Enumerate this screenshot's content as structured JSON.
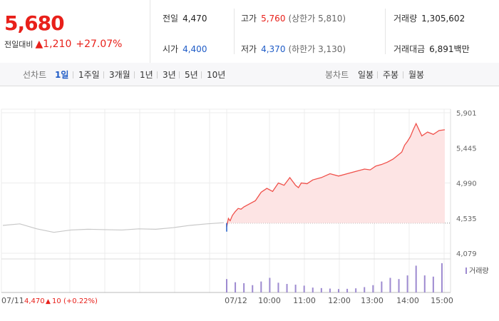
{
  "header": {
    "price": "5,680",
    "change_label": "전일대비",
    "change_arrow": "▲",
    "change_value": "1,210",
    "change_pct": "+27.07%"
  },
  "stats": {
    "prev_close": {
      "label": "전일",
      "value": "4,470"
    },
    "open": {
      "label": "시가",
      "value": "4,400"
    },
    "high": {
      "label": "고가",
      "value": "5,760",
      "sub": "(상한가 5,810)"
    },
    "low": {
      "label": "저가",
      "value": "4,370",
      "sub": "(하한가 3,130)"
    },
    "volume": {
      "label": "거래량",
      "value": "1,305,602"
    },
    "turnover": {
      "label": "거래대금",
      "value": "6,891백만"
    }
  },
  "tabs": {
    "line_label": "선차트",
    "line_items": [
      "1일",
      "1주일",
      "3개월",
      "1년",
      "3년",
      "5년",
      "10년"
    ],
    "candle_label": "봉차트",
    "candle_items": [
      "일봉",
      "주봉",
      "월봉"
    ]
  },
  "colors": {
    "up": "#e8201a",
    "down": "#1f5cc7",
    "price_line": "#f0504a",
    "area_fill": "#fde4e4",
    "prev_day_line": "#c8c8c8",
    "volume": "#9d8ad0"
  },
  "chart_data": {
    "type": "line",
    "title": "",
    "ylim": [
      4079,
      5901
    ],
    "y_ticks": [
      "5,901",
      "5,445",
      "4,990",
      "4,535",
      "4,079"
    ],
    "x_ticks": [
      "07/12",
      "10:00",
      "11:00",
      "12:00",
      "13:00",
      "14:00",
      "15:00"
    ],
    "prev_day_label": "07/11",
    "prev_day_close": "4,470",
    "prev_day_change_arrow": "▲",
    "prev_day_change": "10",
    "prev_day_change_pct": "(+0.22%)",
    "volume_label": "거래량",
    "baseline": 4470,
    "series": [
      {
        "x": [
          "07/11 09:00",
          "07/11 09:30",
          "07/11 10:00",
          "07/11 10:30",
          "07/11 11:00",
          "07/11 11:30",
          "07/11 12:00",
          "07/11 12:30",
          "07/11 13:00",
          "07/11 13:30",
          "07/11 14:00",
          "07/11 14:30",
          "07/11 15:00",
          "07/11 15:30"
        ],
        "values": [
          4440,
          4460,
          4395,
          4350,
          4380,
          4390,
          4385,
          4380,
          4395,
          4390,
          4410,
          4440,
          4460,
          4475
        ]
      },
      {
        "x": [
          "09:00",
          "09:03",
          "09:06",
          "09:10",
          "09:15",
          "09:20",
          "09:25",
          "09:30",
          "09:40",
          "09:50",
          "10:00",
          "10:10",
          "10:20",
          "10:30",
          "10:40",
          "10:45",
          "10:50",
          "11:00",
          "11:05",
          "11:10",
          "11:20",
          "11:30",
          "11:45",
          "12:00",
          "12:15",
          "12:30",
          "12:45",
          "13:00",
          "13:10",
          "13:20",
          "13:30",
          "13:40",
          "13:50",
          "14:00",
          "14:05",
          "14:10",
          "14:15",
          "14:20",
          "14:25",
          "14:30",
          "14:40",
          "14:50",
          "15:00",
          "15:10",
          "15:20"
        ],
        "values": [
          4420,
          4530,
          4500,
          4570,
          4620,
          4660,
          4650,
          4680,
          4720,
          4760,
          4870,
          4920,
          4880,
          4990,
          4960,
          5010,
          5060,
          4960,
          4930,
          4990,
          4980,
          5030,
          5060,
          5110,
          5080,
          5110,
          5140,
          5170,
          5160,
          5210,
          5230,
          5260,
          5300,
          5360,
          5390,
          5480,
          5530,
          5590,
          5680,
          5760,
          5600,
          5650,
          5620,
          5670,
          5680
        ]
      }
    ],
    "volume": {
      "x": [
        "09:00",
        "09:15",
        "09:30",
        "09:45",
        "10:00",
        "10:15",
        "10:30",
        "10:45",
        "11:00",
        "11:15",
        "11:30",
        "11:45",
        "12:00",
        "12:15",
        "12:30",
        "12:45",
        "13:00",
        "13:15",
        "13:30",
        "13:45",
        "14:00",
        "14:15",
        "14:30",
        "14:45",
        "15:00",
        "15:15"
      ],
      "values": [
        55000,
        42000,
        38000,
        30000,
        45000,
        60000,
        40000,
        35000,
        32000,
        28000,
        20000,
        18000,
        16000,
        14000,
        15000,
        17000,
        22000,
        30000,
        45000,
        60000,
        55000,
        70000,
        110000,
        70000,
        65000,
        120000
      ]
    }
  }
}
